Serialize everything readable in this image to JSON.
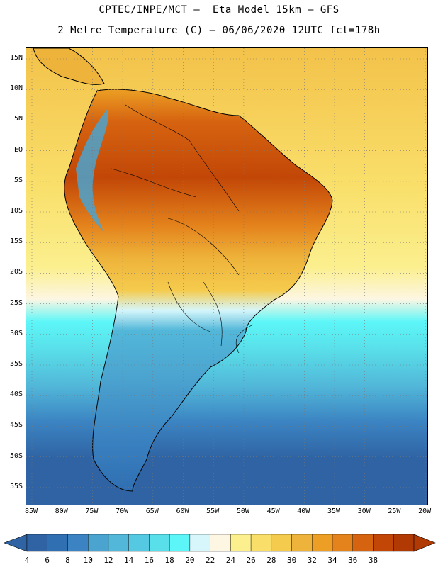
{
  "header": {
    "title_line1": "CPTEC/INPE/MCT –  Eta Model 15km – GFS",
    "title_line2": "2 Metre Temperature (C) – 06/06/2020 12UTC fct=178h"
  },
  "map": {
    "lat_labels": [
      "15N",
      "10N",
      "5N",
      "EQ",
      "5S",
      "10S",
      "15S",
      "20S",
      "25S",
      "30S",
      "35S",
      "40S",
      "45S",
      "50S",
      "55S"
    ],
    "lon_labels": [
      "85W",
      "80W",
      "75W",
      "70W",
      "65W",
      "60W",
      "55W",
      "50W",
      "45W",
      "40W",
      "35W",
      "30W",
      "25W",
      "20W"
    ]
  },
  "colorbar": {
    "labels": [
      "4",
      "6",
      "8",
      "10",
      "12",
      "14",
      "16",
      "18",
      "20",
      "22",
      "24",
      "26",
      "28",
      "30",
      "32",
      "34",
      "36",
      "38"
    ],
    "colors": [
      "#2f63a3",
      "#2f6fb2",
      "#3b83c2",
      "#4ba3cf",
      "#52b7d9",
      "#55c8e2",
      "#59dfe9",
      "#5cf6f8",
      "#d6f6fb",
      "#fdf6e3",
      "#fbef8e",
      "#f9df6a",
      "#f5cb4d",
      "#eeb33a",
      "#ec9f24",
      "#e4831c",
      "#d66310",
      "#c24707",
      "#b13a04"
    ]
  },
  "legend_colors": {
    "ocean_south": "#2f63a3",
    "ocean_mid": "#52b7d9",
    "ocean_warm": "#f5cb4d",
    "amazon_hot": "#c24707",
    "andes_cold": "#4ba3cf",
    "coastline": "#000000"
  }
}
